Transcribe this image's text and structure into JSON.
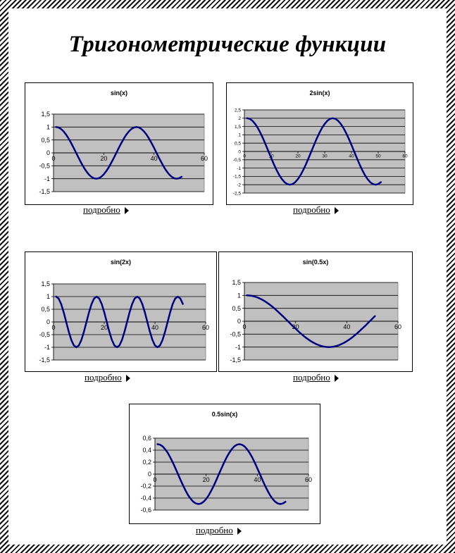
{
  "page": {
    "title": "Тригонометрические функции",
    "details_label": "подробно"
  },
  "colors": {
    "plot_bg": "#c0c0c0",
    "line": "#000080",
    "grid": "#000000"
  },
  "chart_data": [
    {
      "type": "line",
      "title": "sin(x)",
      "function": "sin(x)",
      "amplitude": 1,
      "frequency": 1,
      "x": [
        1,
        2,
        3,
        4,
        5,
        6,
        7,
        8,
        9,
        10,
        11,
        12,
        13,
        14,
        15,
        16,
        17,
        18,
        19,
        20,
        21,
        22,
        23,
        24,
        25,
        26,
        27,
        28,
        29,
        30,
        31,
        32,
        33,
        34,
        35,
        36,
        37,
        38,
        39,
        40,
        41,
        42,
        43,
        44,
        45,
        46,
        47,
        48,
        49,
        50,
        51
      ],
      "xlim": [
        0,
        60
      ],
      "ylim": [
        -1.5,
        1.5
      ],
      "xticks": [
        0,
        20,
        40,
        60
      ],
      "yticks": [
        1.5,
        1,
        0.5,
        0,
        -0.5,
        -1,
        -1.5
      ],
      "ytick_labels": [
        "1,5",
        "1",
        "0,5",
        "0",
        "-0,5",
        "-1",
        "-1,5"
      ],
      "grid": true,
      "legend": "none"
    },
    {
      "type": "line",
      "title": "2sin(x)",
      "function": "2sin(x)",
      "amplitude": 2,
      "frequency": 1,
      "x": [
        1,
        2,
        3,
        4,
        5,
        6,
        7,
        8,
        9,
        10,
        11,
        12,
        13,
        14,
        15,
        16,
        17,
        18,
        19,
        20,
        21,
        22,
        23,
        24,
        25,
        26,
        27,
        28,
        29,
        30,
        31,
        32,
        33,
        34,
        35,
        36,
        37,
        38,
        39,
        40,
        41,
        42,
        43,
        44,
        45,
        46,
        47,
        48,
        49,
        50,
        51
      ],
      "xlim": [
        0,
        60
      ],
      "ylim": [
        -2.5,
        2.5
      ],
      "xticks": [
        0,
        10,
        20,
        30,
        40,
        50,
        60
      ],
      "yticks": [
        2.5,
        2,
        1.5,
        1,
        0.5,
        0,
        -0.5,
        -1,
        -1.5,
        -2,
        -2.5
      ],
      "ytick_labels": [
        "2,5",
        "2",
        "1,5",
        "1",
        "0,5",
        "0",
        "-0,5",
        "-1",
        "-1,5",
        "-2",
        "-2,5"
      ],
      "grid": true,
      "legend": "none"
    },
    {
      "type": "line",
      "title": "sin(2x)",
      "function": "sin(2x)",
      "amplitude": 1,
      "frequency": 2,
      "x": [
        1,
        2,
        3,
        4,
        5,
        6,
        7,
        8,
        9,
        10,
        11,
        12,
        13,
        14,
        15,
        16,
        17,
        18,
        19,
        20,
        21,
        22,
        23,
        24,
        25,
        26,
        27,
        28,
        29,
        30,
        31,
        32,
        33,
        34,
        35,
        36,
        37,
        38,
        39,
        40,
        41,
        42,
        43,
        44,
        45,
        46,
        47,
        48,
        49,
        50,
        51
      ],
      "xlim": [
        0,
        60
      ],
      "ylim": [
        -1.5,
        1.5
      ],
      "xticks": [
        0,
        20,
        40,
        60
      ],
      "yticks": [
        1.5,
        1,
        0.5,
        0,
        -0.5,
        -1,
        -1.5
      ],
      "ytick_labels": [
        "1,5",
        "1",
        "0,5",
        "0",
        "-0,5",
        "-1",
        "-1,5"
      ],
      "grid": true,
      "legend": "none"
    },
    {
      "type": "line",
      "title": "sin(0.5x)",
      "function": "sin(0.5x)",
      "amplitude": 1,
      "frequency": 0.5,
      "x": [
        1,
        2,
        3,
        4,
        5,
        6,
        7,
        8,
        9,
        10,
        11,
        12,
        13,
        14,
        15,
        16,
        17,
        18,
        19,
        20,
        21,
        22,
        23,
        24,
        25,
        26,
        27,
        28,
        29,
        30,
        31,
        32,
        33,
        34,
        35,
        36,
        37,
        38,
        39,
        40,
        41,
        42,
        43,
        44,
        45,
        46,
        47,
        48,
        49,
        50,
        51
      ],
      "xlim": [
        0,
        60
      ],
      "ylim": [
        -1.5,
        1.5
      ],
      "xticks": [
        0,
        20,
        40,
        60
      ],
      "yticks": [
        1.5,
        1,
        0.5,
        0,
        -0.5,
        -1,
        -1.5
      ],
      "ytick_labels": [
        "1,5",
        "1",
        "0,5",
        "0",
        "-0,5",
        "-1",
        "-1,5"
      ],
      "grid": true,
      "legend": "none"
    },
    {
      "type": "line",
      "title": "0.5sin(x)",
      "function": "0.5sin(x)",
      "amplitude": 0.5,
      "frequency": 1,
      "x": [
        1,
        2,
        3,
        4,
        5,
        6,
        7,
        8,
        9,
        10,
        11,
        12,
        13,
        14,
        15,
        16,
        17,
        18,
        19,
        20,
        21,
        22,
        23,
        24,
        25,
        26,
        27,
        28,
        29,
        30,
        31,
        32,
        33,
        34,
        35,
        36,
        37,
        38,
        39,
        40,
        41,
        42,
        43,
        44,
        45,
        46,
        47,
        48,
        49,
        50,
        51
      ],
      "xlim": [
        0,
        60
      ],
      "ylim": [
        -0.6,
        0.6
      ],
      "xticks": [
        0,
        20,
        40,
        60
      ],
      "yticks": [
        0.6,
        0.4,
        0.2,
        0,
        -0.2,
        -0.4,
        -0.6
      ],
      "ytick_labels": [
        "0,6",
        "0,4",
        "0,2",
        "0",
        "-0,2",
        "-0,4",
        "-0,6"
      ],
      "grid": true,
      "legend": "none"
    }
  ]
}
